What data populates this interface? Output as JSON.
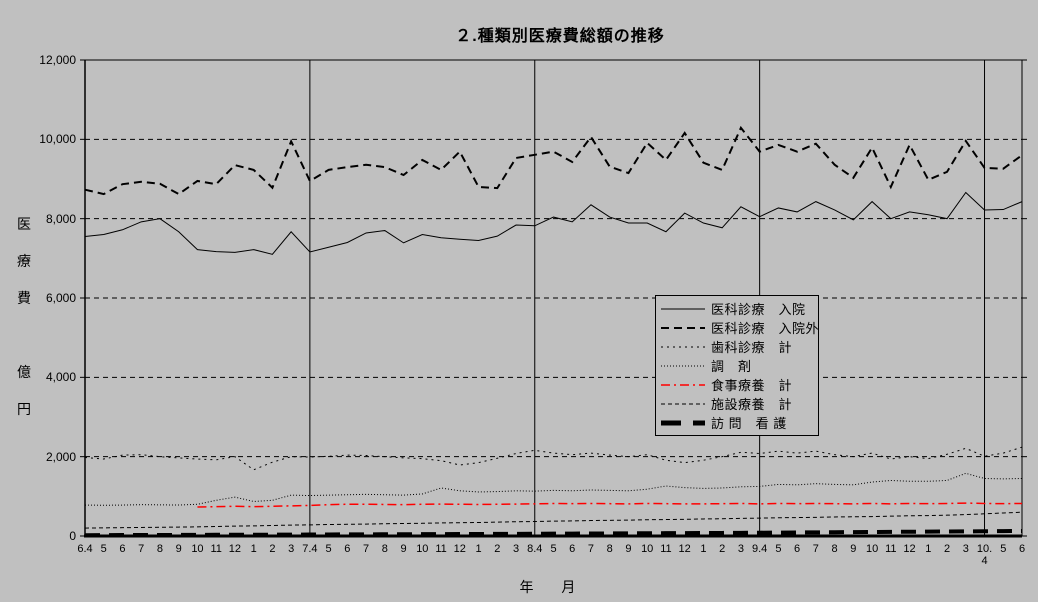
{
  "title": "２.種類別医療費総額の推移",
  "y_axis": {
    "title_vertical": "医\n療\n費\n\n億\n円",
    "ticks": [
      {
        "value": 12000,
        "label": "12,000"
      },
      {
        "value": 10000,
        "label": "10,000"
      },
      {
        "value": 8000,
        "label": "8,000"
      },
      {
        "value": 6000,
        "label": "6,000"
      },
      {
        "value": 4000,
        "label": "4,000"
      },
      {
        "value": 2000,
        "label": "2,000"
      },
      {
        "value": 0,
        "label": "0"
      }
    ]
  },
  "x_axis": {
    "title": "年 月"
  },
  "colors": {
    "background": "#c0c0c0",
    "line_default": "#000000",
    "line_food": "#ff0000"
  },
  "chart_data": {
    "type": "line",
    "title": "２.種類別医療費総額の推移",
    "ylabel": "医療費 億円",
    "xlabel": "年 月",
    "ylim": [
      0,
      12000
    ],
    "y_tick_interval": 2000,
    "grid": "horizontal dashed gridlines; solid vertical fiscal-year separators",
    "fiscal_year_separator_indices": [
      12,
      24,
      36,
      48
    ],
    "legend_position": "inside right-center, boxed",
    "x_labels": [
      "6.4",
      "5",
      "6",
      "7",
      "8",
      "9",
      "10",
      "11",
      "12",
      "1",
      "2",
      "3",
      "7.4",
      "5",
      "6",
      "7",
      "8",
      "9",
      "10",
      "11",
      "12",
      "1",
      "2",
      "3",
      "8.4",
      "5",
      "6",
      "7",
      "8",
      "9",
      "10",
      "11",
      "12",
      "1",
      "2",
      "3",
      "9.4",
      "5",
      "6",
      "7",
      "8",
      "9",
      "10",
      "11",
      "12",
      "1",
      "2",
      "3",
      "10.\n4",
      "5",
      "6"
    ],
    "series": [
      {
        "name": "医科診療　入院",
        "style": "solid",
        "color": "#000000",
        "width": 1,
        "values": [
          7550,
          7600,
          7720,
          7920,
          8000,
          7670,
          7220,
          7170,
          7150,
          7220,
          7100,
          7670,
          7160,
          7280,
          7400,
          7640,
          7700,
          7390,
          7600,
          7520,
          7480,
          7450,
          7560,
          7840,
          7820,
          8040,
          7920,
          8350,
          8040,
          7890,
          7890,
          7670,
          8140,
          7890,
          7770,
          8300,
          8050,
          8270,
          8170,
          8430,
          8220,
          7970,
          8430,
          8000,
          8170,
          8100,
          8000,
          8660,
          8220,
          8230,
          8430
        ]
      },
      {
        "name": "医科診療　入院外",
        "style": "dash",
        "color": "#000000",
        "width": 2,
        "values": [
          8730,
          8620,
          8870,
          8930,
          8880,
          8620,
          8950,
          8870,
          9350,
          9230,
          8780,
          9950,
          8950,
          9230,
          9300,
          9360,
          9300,
          9100,
          9480,
          9230,
          9690,
          8800,
          8770,
          9530,
          9610,
          9690,
          9430,
          10060,
          9310,
          9150,
          9910,
          9480,
          10160,
          9410,
          9230,
          10290,
          9690,
          9860,
          9690,
          9890,
          9360,
          9030,
          9790,
          8800,
          9860,
          8980,
          9180,
          9960,
          9280,
          9260,
          9600
        ]
      },
      {
        "name": "歯科診療　計",
        "style": "dot",
        "color": "#000000",
        "width": 1,
        "values": [
          1980,
          1940,
          2040,
          2050,
          2000,
          1970,
          1940,
          1920,
          2000,
          1670,
          1860,
          2000,
          1990,
          2010,
          2040,
          2030,
          2000,
          1970,
          1950,
          1900,
          1790,
          1850,
          1960,
          2080,
          2160,
          2090,
          2050,
          2090,
          2040,
          2000,
          2050,
          1910,
          1850,
          1910,
          2000,
          2110,
          2080,
          2140,
          2090,
          2140,
          2050,
          2000,
          2090,
          1940,
          2000,
          1950,
          2060,
          2210,
          2010,
          2090,
          2240
        ]
      },
      {
        "name": "調　剤",
        "style": "fine-dot",
        "color": "#000000",
        "width": 1,
        "values": [
          780,
          775,
          780,
          790,
          785,
          780,
          800,
          900,
          980,
          870,
          900,
          1030,
          1020,
          1030,
          1040,
          1050,
          1040,
          1030,
          1060,
          1210,
          1140,
          1110,
          1120,
          1140,
          1130,
          1150,
          1140,
          1160,
          1150,
          1140,
          1180,
          1260,
          1220,
          1200,
          1210,
          1240,
          1250,
          1300,
          1290,
          1320,
          1300,
          1290,
          1360,
          1400,
          1380,
          1380,
          1400,
          1580,
          1450,
          1440,
          1450
        ]
      },
      {
        "name": "食事療養　計",
        "style": "dash-dot",
        "color": "#ff0000",
        "width": 1.5,
        "values": [
          null,
          null,
          null,
          null,
          null,
          null,
          730,
          740,
          750,
          740,
          750,
          760,
          770,
          790,
          800,
          800,
          795,
          790,
          800,
          805,
          800,
          795,
          800,
          805,
          810,
          820,
          815,
          820,
          815,
          810,
          820,
          815,
          810,
          810,
          815,
          820,
          810,
          820,
          815,
          820,
          815,
          810,
          820,
          810,
          820,
          815,
          820,
          830,
          820,
          815,
          820
        ]
      },
      {
        "name": "施設療養　計",
        "style": "fine-dash",
        "color": "#000000",
        "width": 1,
        "values": [
          200,
          205,
          210,
          215,
          220,
          225,
          230,
          240,
          250,
          255,
          265,
          275,
          280,
          290,
          295,
          300,
          310,
          315,
          320,
          330,
          335,
          340,
          350,
          360,
          365,
          375,
          380,
          390,
          395,
          400,
          410,
          415,
          420,
          430,
          435,
          445,
          450,
          460,
          465,
          470,
          480,
          485,
          490,
          500,
          510,
          515,
          525,
          540,
          560,
          580,
          600
        ]
      },
      {
        "name": "訪 問　看 護",
        "style": "bold-dash",
        "color": "#000000",
        "width": 4,
        "values": [
          20,
          22,
          24,
          25,
          26,
          27,
          28,
          30,
          31,
          32,
          33,
          35,
          37,
          39,
          40,
          42,
          43,
          45,
          46,
          48,
          50,
          51,
          53,
          55,
          57,
          59,
          61,
          63,
          65,
          67,
          69,
          71,
          73,
          75,
          77,
          80,
          83,
          86,
          89,
          92,
          95,
          98,
          101,
          104,
          107,
          110,
          113,
          117,
          120,
          123,
          127
        ]
      }
    ]
  }
}
